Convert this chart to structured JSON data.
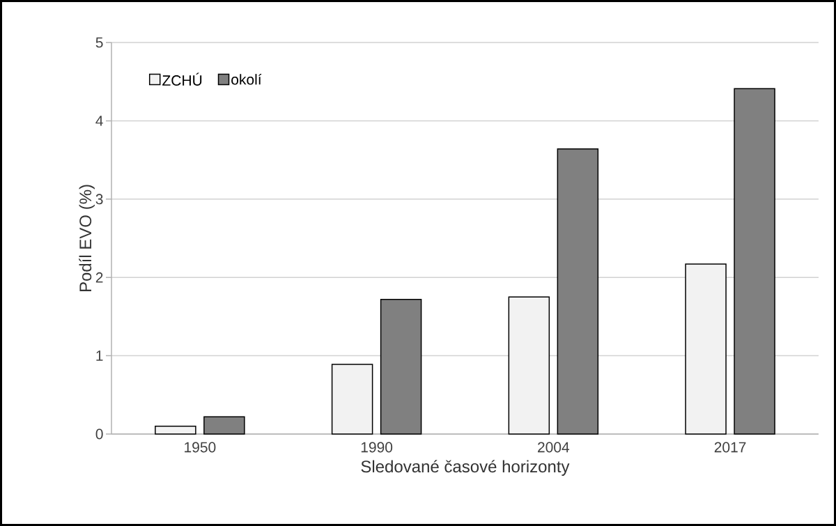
{
  "chart_data": {
    "type": "bar",
    "xlabel": "Sledované časové horizonty",
    "ylabel": "Podíl EVO (%)",
    "categories": [
      "1950",
      "1990",
      "2004",
      "2017"
    ],
    "series": [
      {
        "name": "ZCHÚ",
        "color": "#f2f2f2",
        "values": [
          0.1,
          0.89,
          1.75,
          2.17
        ]
      },
      {
        "name": "okolí",
        "color": "#808080",
        "values": [
          0.22,
          1.72,
          3.64,
          4.41
        ]
      }
    ],
    "ylim": [
      0,
      5
    ],
    "yticks": [
      0,
      1,
      2,
      3,
      4,
      5
    ],
    "grid": "y",
    "legend": "top left"
  }
}
